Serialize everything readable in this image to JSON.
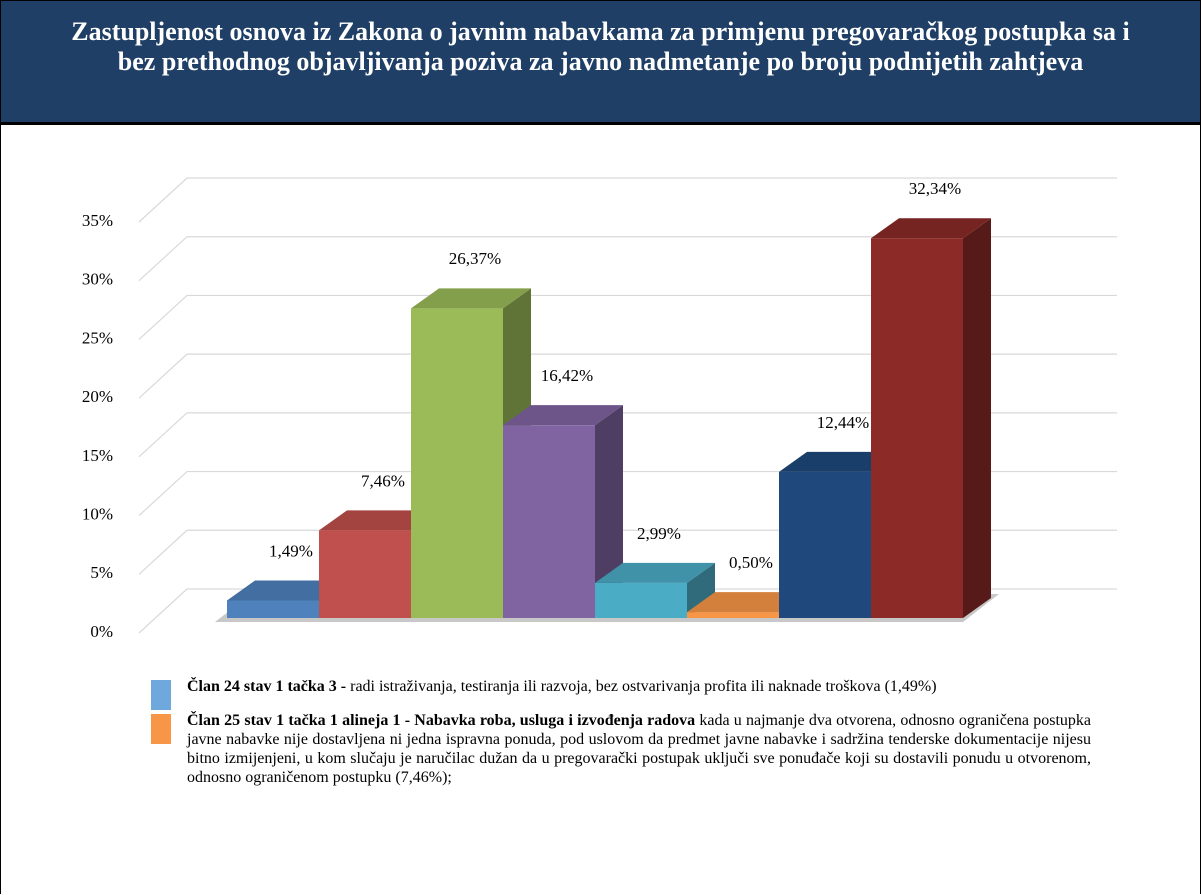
{
  "header": {
    "title": "Zastupljenost osnova iz Zakona o javnim nabavkama za primjenu pregovaračkog postupka sa i bez prethodnog objavljivanja poziva za javno nadmetanje po broju podnijetih zahtjeva"
  },
  "chart_data": {
    "type": "bar3d",
    "values": [
      1.49,
      7.46,
      26.37,
      16.42,
      2.99,
      0.5,
      12.44,
      32.34
    ],
    "value_labels": [
      "1,49%",
      "7,46%",
      "26,37%",
      "16,42%",
      "2,99%",
      "0,50%",
      "12,44%",
      "32,34%"
    ],
    "colors": [
      "#4f81bd",
      "#c0504d",
      "#9bbb59",
      "#8064a2",
      "#4bacc6",
      "#f79646",
      "#1f497d",
      "#8b2a27"
    ],
    "ylim": [
      0,
      35
    ],
    "yticks": [
      {
        "value": 0,
        "label": "0%"
      },
      {
        "value": 5,
        "label": "5%"
      },
      {
        "value": 10,
        "label": "10%"
      },
      {
        "value": 15,
        "label": "15%"
      },
      {
        "value": 20,
        "label": "20%"
      },
      {
        "value": 25,
        "label": "25%"
      },
      {
        "value": 30,
        "label": "30%"
      },
      {
        "value": 35,
        "label": "35%"
      }
    ],
    "grid": true
  },
  "legend": [
    {
      "color": "#6fa8dc",
      "bold": "Član 24 stav 1 tačka 3 -",
      "text": " radi istraživanja, testiranja ili razvoja, bez ostvarivanja profita ili naknade troškova (1,49%)"
    },
    {
      "color": "#f79646",
      "bold": "Član 25 stav 1 tačka 1 alineja 1 - Nabavka roba, usluga i izvođenja  radova",
      "text": " kada u najmanje dva otvorena, odnosno ograničena postupka javne nabavke nije dostavljena ni jedna ispravna ponuda, pod uslovom da predmet javne nabavke i sadržina tenderske dokumentacije nijesu bitno izmijenjeni, u kom slučaju je naručilac dužan da u pregovarački postupak uključi sve ponuđače koji su dostavili ponudu u otvorenom, odnosno ograničenom postupku (7,46%);"
    }
  ]
}
